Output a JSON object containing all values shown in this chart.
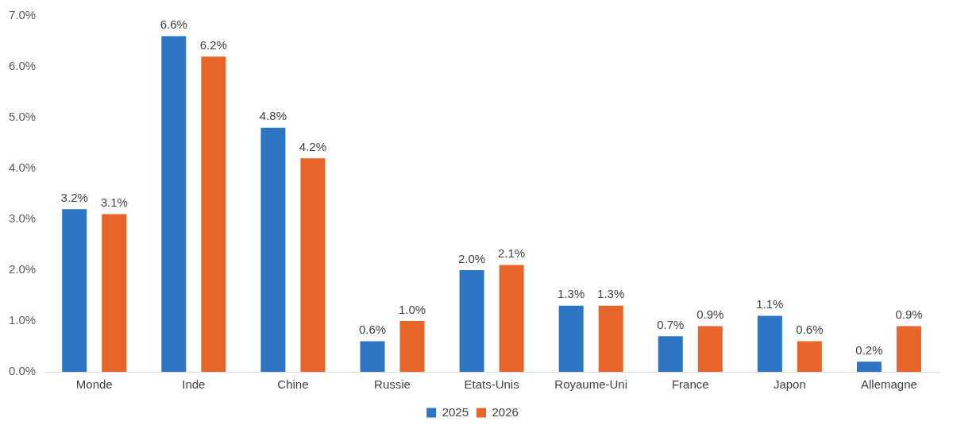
{
  "chart_data": {
    "type": "bar",
    "categories": [
      "Monde",
      "Inde",
      "Chine",
      "Russie",
      "Etats-Unis",
      "Royaume-Uni",
      "France",
      "Japon",
      "Allemagne"
    ],
    "series": [
      {
        "name": "2025",
        "color": "#2f75c5",
        "values": [
          3.2,
          6.6,
          4.8,
          0.6,
          2.0,
          1.3,
          0.7,
          1.1,
          0.2
        ],
        "value_labels": [
          "3.2%",
          "6.6%",
          "4.8%",
          "0.6%",
          "2.0%",
          "1.3%",
          "0.7%",
          "1.1%",
          "0.2%"
        ]
      },
      {
        "name": "2026",
        "color": "#e8652a",
        "values": [
          3.1,
          6.2,
          4.2,
          1.0,
          2.1,
          1.3,
          0.9,
          0.6,
          0.9
        ],
        "value_labels": [
          "3.1%",
          "6.2%",
          "4.2%",
          "1.0%",
          "2.1%",
          "1.3%",
          "0.9%",
          "0.6%",
          "0.9%"
        ]
      }
    ],
    "ylim": [
      0,
      7
    ],
    "yticks": [
      {
        "value": 0,
        "label": "0.0%"
      },
      {
        "value": 1,
        "label": "1.0%"
      },
      {
        "value": 2,
        "label": "2.0%"
      },
      {
        "value": 3,
        "label": "3.0%"
      },
      {
        "value": 4,
        "label": "4.0%"
      },
      {
        "value": 5,
        "label": "5.0%"
      },
      {
        "value": 6,
        "label": "6.0%"
      },
      {
        "value": 7,
        "label": "7.0%"
      }
    ],
    "grid": false,
    "legend": "bottom"
  }
}
